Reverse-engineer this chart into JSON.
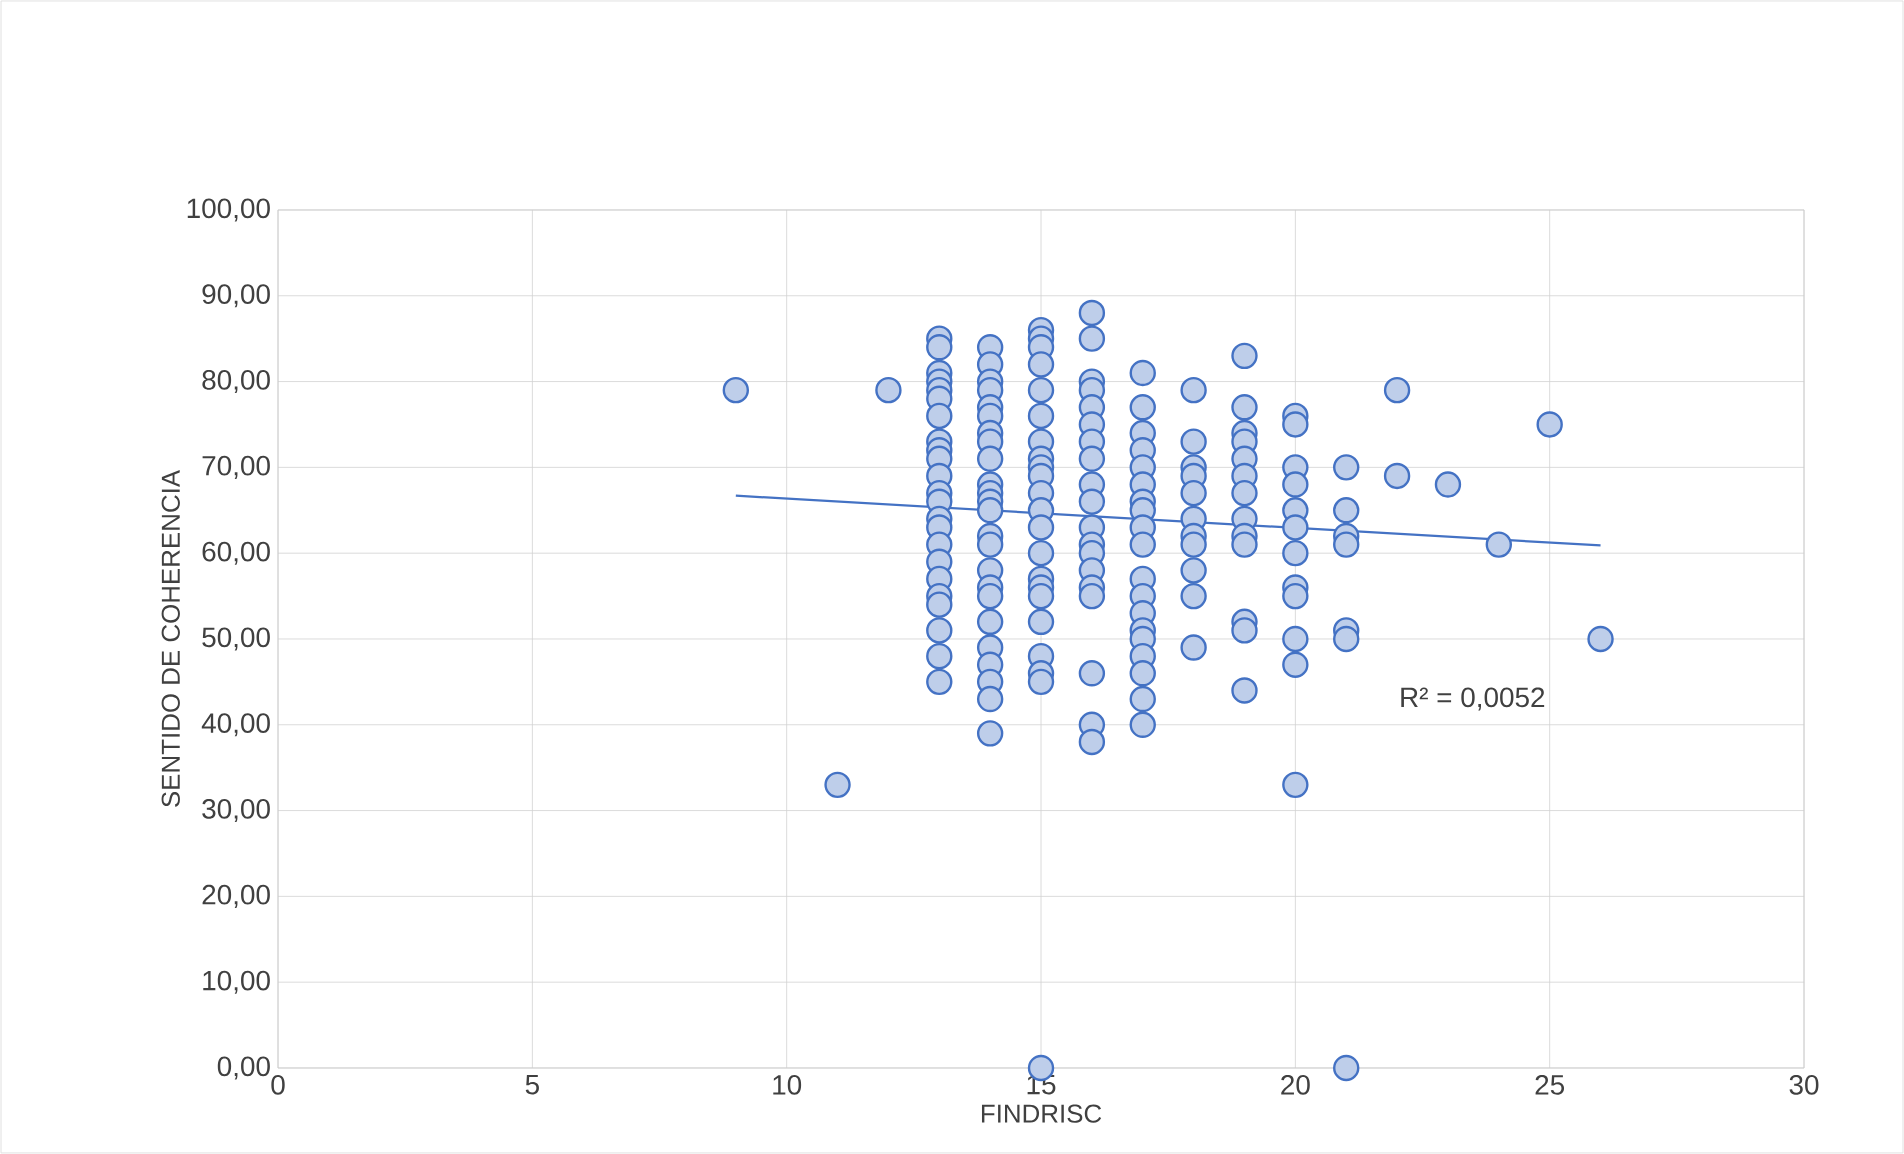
{
  "chart_data": {
    "type": "scatter",
    "xlabel": "FINDRISC",
    "ylabel": "SENTIDO DE COHERENCIA",
    "xlim": [
      0,
      30
    ],
    "xticks": [
      0,
      5,
      10,
      15,
      20,
      25,
      30
    ],
    "ylim": [
      0,
      100
    ],
    "yticks": [
      {
        "value": 0,
        "label": "0,00"
      },
      {
        "value": 10,
        "label": "10,00"
      },
      {
        "value": 20,
        "label": "20,00"
      },
      {
        "value": 30,
        "label": "30,00"
      },
      {
        "value": 40,
        "label": "40,00"
      },
      {
        "value": 50,
        "label": "50,00"
      },
      {
        "value": 60,
        "label": "60,00"
      },
      {
        "value": 70,
        "label": "70,00"
      },
      {
        "value": 80,
        "label": "80,00"
      },
      {
        "value": 90,
        "label": "90,00"
      },
      {
        "value": 100,
        "label": "100,00"
      }
    ],
    "grid": true,
    "annotations": [
      "R² = 0,0052"
    ],
    "series": [
      {
        "marker": "circle",
        "color": "#4472c4",
        "x": [
          9,
          11,
          12,
          13,
          13,
          13,
          13,
          13,
          13,
          13,
          13,
          13,
          13,
          13,
          13,
          13,
          13,
          13,
          13,
          13,
          13,
          13,
          13,
          13,
          13,
          13,
          14,
          14,
          14,
          14,
          14,
          14,
          14,
          14,
          14,
          14,
          14,
          14,
          14,
          14,
          14,
          14,
          14,
          14,
          14,
          14,
          14,
          14,
          14,
          14,
          15,
          15,
          15,
          15,
          15,
          15,
          15,
          15,
          15,
          15,
          15,
          15,
          15,
          15,
          15,
          15,
          15,
          15,
          15,
          15,
          15,
          15,
          16,
          16,
          16,
          16,
          16,
          16,
          16,
          16,
          16,
          16,
          16,
          16,
          16,
          16,
          16,
          16,
          16,
          16,
          16,
          17,
          17,
          17,
          17,
          17,
          17,
          17,
          17,
          17,
          17,
          17,
          17,
          17,
          17,
          17,
          17,
          17,
          17,
          17,
          18,
          18,
          18,
          18,
          18,
          18,
          18,
          18,
          18,
          18,
          18,
          19,
          19,
          19,
          19,
          19,
          19,
          19,
          19,
          19,
          19,
          19,
          19,
          19,
          20,
          20,
          20,
          20,
          20,
          20,
          20,
          20,
          20,
          20,
          20,
          20,
          21,
          21,
          21,
          21,
          21,
          21,
          21,
          22,
          22,
          23,
          24,
          25,
          26
        ],
        "values": [
          79,
          33,
          79,
          85,
          84,
          81,
          80,
          79,
          78,
          76,
          73,
          72,
          71,
          69,
          67,
          66,
          64,
          63,
          61,
          59,
          57,
          55,
          54,
          51,
          48,
          45,
          84,
          82,
          80,
          79,
          77,
          76,
          74,
          73,
          71,
          68,
          67,
          66,
          65,
          62,
          61,
          58,
          56,
          55,
          52,
          49,
          47,
          45,
          43,
          39,
          86,
          85,
          84,
          82,
          79,
          76,
          73,
          71,
          70,
          69,
          67,
          65,
          63,
          60,
          57,
          56,
          55,
          52,
          48,
          46,
          45,
          0,
          88,
          85,
          80,
          79,
          77,
          75,
          73,
          71,
          68,
          66,
          63,
          61,
          60,
          58,
          56,
          55,
          46,
          40,
          38,
          81,
          77,
          74,
          72,
          70,
          68,
          66,
          65,
          63,
          61,
          57,
          55,
          53,
          51,
          50,
          48,
          46,
          43,
          40,
          79,
          73,
          70,
          69,
          67,
          64,
          62,
          61,
          58,
          55,
          49,
          83,
          77,
          74,
          73,
          71,
          69,
          67,
          64,
          62,
          61,
          52,
          51,
          44,
          76,
          75,
          70,
          68,
          65,
          63,
          60,
          56,
          55,
          50,
          47,
          33,
          70,
          65,
          62,
          61,
          51,
          50,
          0,
          79,
          69,
          68,
          61,
          75,
          50
        ]
      },
      {
        "type": "line",
        "marker": "none",
        "color": "#4472c4",
        "x": [
          9,
          26
        ],
        "values": [
          66.7,
          60.9
        ]
      }
    ]
  }
}
